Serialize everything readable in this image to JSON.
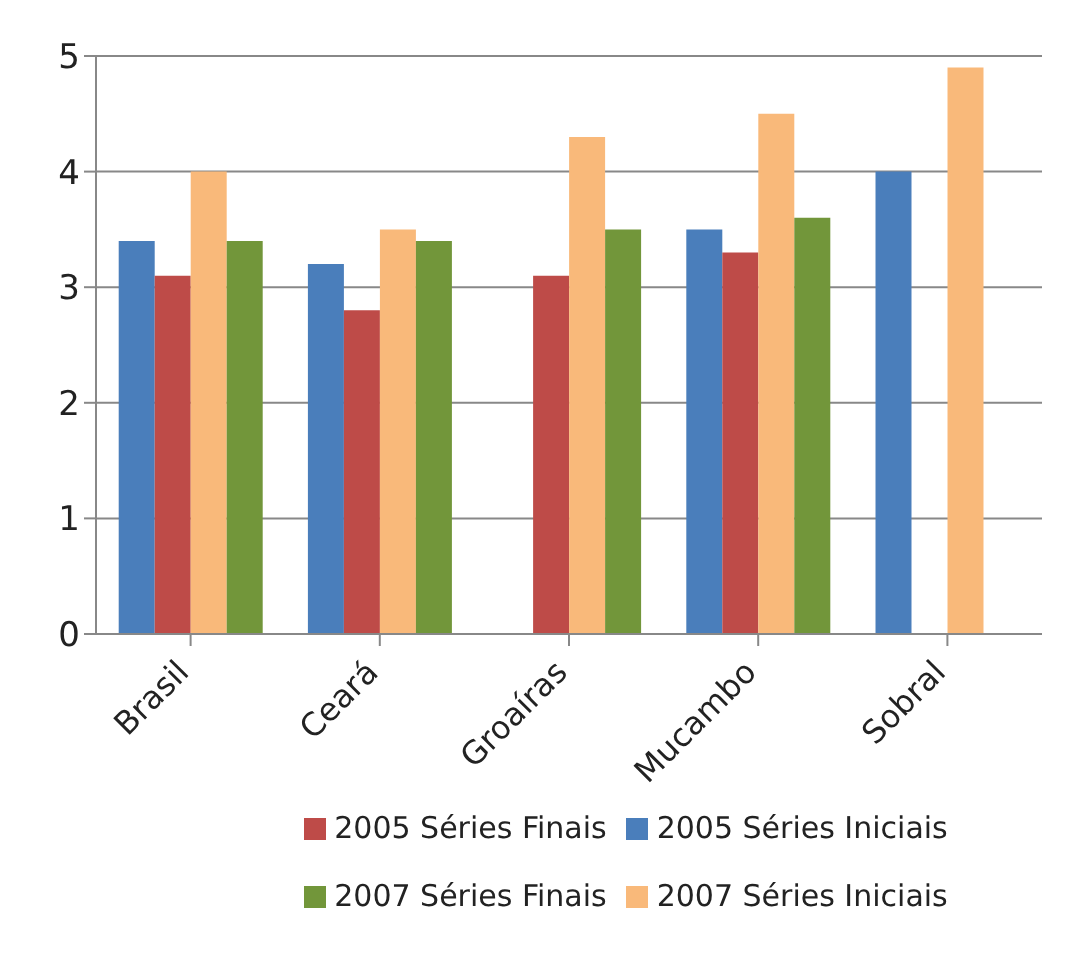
{
  "chart_data": {
    "type": "bar",
    "categories": [
      "Brasil",
      "Ceará",
      "Groaíras",
      "Mucambo",
      "Sobral"
    ],
    "series": [
      {
        "name": "2005 Séries Iniciais",
        "color": "#4a7ebb",
        "values": [
          3.4,
          3.2,
          0,
          3.5,
          4.0
        ]
      },
      {
        "name": "2005 Séries Finais",
        "color": "#be4b48",
        "values": [
          3.1,
          2.8,
          3.1,
          3.3,
          0
        ]
      },
      {
        "name": "2007 Séries Iniciais",
        "color": "#f9b97a",
        "values": [
          4.0,
          3.5,
          4.3,
          4.5,
          4.9
        ]
      },
      {
        "name": "2007 Séries Finais",
        "color": "#72963a",
        "values": [
          3.4,
          3.4,
          3.5,
          3.6,
          0
        ]
      }
    ],
    "ylim": [
      0,
      5
    ],
    "yticks": [
      0,
      1,
      2,
      3,
      4,
      5
    ],
    "grid": "y",
    "legend": "bottom"
  }
}
